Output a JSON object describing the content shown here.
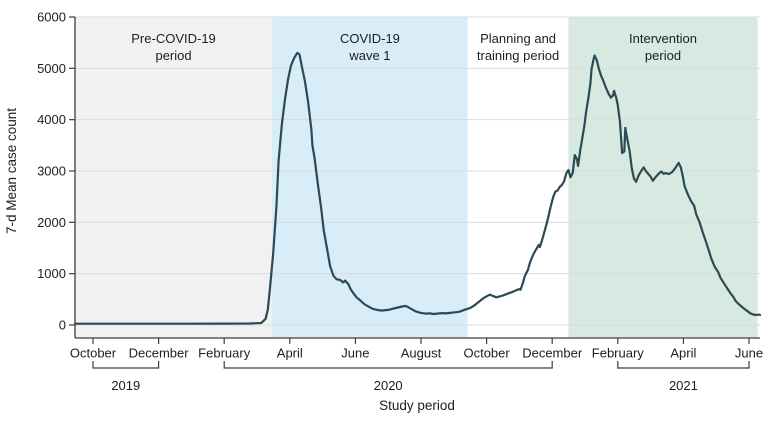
{
  "figure": {
    "y_axis_title": "7-d Mean case count",
    "x_axis_title": "Study period"
  },
  "chart_data": {
    "type": "line",
    "title": "",
    "xlabel": "Study period",
    "ylabel": "7-d Mean case count",
    "ylim": [
      0,
      6000
    ],
    "y_ticks": [
      0,
      1000,
      2000,
      3000,
      4000,
      5000,
      6000
    ],
    "grid": "horizontal",
    "legend": "none",
    "x_range": [
      "2019-09-14",
      "2021-06-09"
    ],
    "x_ticks": [
      {
        "date": "2019-10-01",
        "label": "October"
      },
      {
        "date": "2019-12-01",
        "label": "December"
      },
      {
        "date": "2020-02-01",
        "label": "February"
      },
      {
        "date": "2020-04-01",
        "label": "April"
      },
      {
        "date": "2020-06-01",
        "label": "June"
      },
      {
        "date": "2020-08-01",
        "label": "August"
      },
      {
        "date": "2020-10-01",
        "label": "October"
      },
      {
        "date": "2020-12-01",
        "label": "December"
      },
      {
        "date": "2021-02-01",
        "label": "February"
      },
      {
        "date": "2021-04-01",
        "label": "April"
      },
      {
        "date": "2021-06-01",
        "label": "June"
      }
    ],
    "year_brackets": [
      {
        "start": "2019-10-01",
        "end": "2019-12-01",
        "label": "2019"
      },
      {
        "start": "2020-02-01",
        "end": "2020-12-01",
        "label": "2020"
      },
      {
        "start": "2021-02-01",
        "end": "2021-06-01",
        "label": "2021"
      }
    ],
    "regions": [
      {
        "line1": "Pre-COVID-19",
        "line2": "period",
        "start": "2019-09-14",
        "end": "2020-03-15",
        "color": "#f0f1f0"
      },
      {
        "line1": "COVID-19",
        "line2": "wave 1",
        "start": "2020-03-15",
        "end": "2020-09-14",
        "color": "#d8edf8"
      },
      {
        "line1": "Planning and",
        "line2": "training period",
        "start": "2020-09-14",
        "end": "2020-12-16",
        "color": "#ffffff"
      },
      {
        "line1": "Intervention",
        "line2": "period",
        "start": "2020-12-16",
        "end": "2021-06-09",
        "color": "#d7e9e0"
      }
    ],
    "colors": {
      "line": "#2a4b55",
      "axis": "#3d3d3d",
      "grid": "#dadddb",
      "text": "#1e1e1e"
    },
    "series": [
      {
        "name": "7-d mean case count",
        "points": [
          [
            "2019-09-14",
            25
          ],
          [
            "2019-10-16",
            25
          ],
          [
            "2019-11-23",
            25
          ],
          [
            "2020-01-01",
            25
          ],
          [
            "2020-02-01",
            28
          ],
          [
            "2020-02-25",
            30
          ],
          [
            "2020-03-05",
            38
          ],
          [
            "2020-03-09",
            120
          ],
          [
            "2020-03-11",
            300
          ],
          [
            "2020-03-13",
            700
          ],
          [
            "2020-03-16",
            1400
          ],
          [
            "2020-03-19",
            2300
          ],
          [
            "2020-03-21",
            3200
          ],
          [
            "2020-03-24",
            3900
          ],
          [
            "2020-03-27",
            4400
          ],
          [
            "2020-03-30",
            4800
          ],
          [
            "2020-04-02",
            5050
          ],
          [
            "2020-04-05",
            5200
          ],
          [
            "2020-04-08",
            5300
          ],
          [
            "2020-04-10",
            5270
          ],
          [
            "2020-04-12",
            5050
          ],
          [
            "2020-04-15",
            4750
          ],
          [
            "2020-04-18",
            4350
          ],
          [
            "2020-04-21",
            3800
          ],
          [
            "2020-04-22",
            3500
          ],
          [
            "2020-04-24",
            3250
          ],
          [
            "2020-04-27",
            2750
          ],
          [
            "2020-04-30",
            2300
          ],
          [
            "2020-05-02",
            1850
          ],
          [
            "2020-05-05",
            1500
          ],
          [
            "2020-05-08",
            1150
          ],
          [
            "2020-05-11",
            960
          ],
          [
            "2020-05-14",
            890
          ],
          [
            "2020-05-17",
            880
          ],
          [
            "2020-05-20",
            830
          ],
          [
            "2020-05-22",
            865
          ],
          [
            "2020-05-25",
            790
          ],
          [
            "2020-05-27",
            700
          ],
          [
            "2020-05-30",
            610
          ],
          [
            "2020-06-02",
            540
          ],
          [
            "2020-06-06",
            470
          ],
          [
            "2020-06-10",
            395
          ],
          [
            "2020-06-14",
            350
          ],
          [
            "2020-06-17",
            315
          ],
          [
            "2020-06-22",
            290
          ],
          [
            "2020-06-26",
            283
          ],
          [
            "2020-07-01",
            295
          ],
          [
            "2020-07-05",
            315
          ],
          [
            "2020-07-10",
            340
          ],
          [
            "2020-07-14",
            360
          ],
          [
            "2020-07-17",
            372
          ],
          [
            "2020-07-19",
            355
          ],
          [
            "2020-07-23",
            305
          ],
          [
            "2020-07-27",
            262
          ],
          [
            "2020-07-31",
            238
          ],
          [
            "2020-08-05",
            222
          ],
          [
            "2020-08-09",
            226
          ],
          [
            "2020-08-13",
            214
          ],
          [
            "2020-08-17",
            224
          ],
          [
            "2020-08-20",
            232
          ],
          [
            "2020-08-24",
            226
          ],
          [
            "2020-08-28",
            235
          ],
          [
            "2020-09-02",
            247
          ],
          [
            "2020-09-06",
            257
          ],
          [
            "2020-09-09",
            280
          ],
          [
            "2020-09-13",
            310
          ],
          [
            "2020-09-16",
            330
          ],
          [
            "2020-09-20",
            380
          ],
          [
            "2020-09-23",
            430
          ],
          [
            "2020-09-26",
            480
          ],
          [
            "2020-09-29",
            530
          ],
          [
            "2020-10-01",
            560
          ],
          [
            "2020-10-04",
            590
          ],
          [
            "2020-10-07",
            565
          ],
          [
            "2020-10-10",
            540
          ],
          [
            "2020-10-13",
            555
          ],
          [
            "2020-10-17",
            580
          ],
          [
            "2020-10-21",
            615
          ],
          [
            "2020-10-25",
            645
          ],
          [
            "2020-10-28",
            672
          ],
          [
            "2020-10-31",
            700
          ],
          [
            "2020-11-02",
            688
          ],
          [
            "2020-11-04",
            800
          ],
          [
            "2020-11-06",
            950
          ],
          [
            "2020-11-09",
            1080
          ],
          [
            "2020-11-11",
            1230
          ],
          [
            "2020-11-14",
            1380
          ],
          [
            "2020-11-17",
            1490
          ],
          [
            "2020-11-19",
            1560
          ],
          [
            "2020-11-20",
            1520
          ],
          [
            "2020-11-22",
            1650
          ],
          [
            "2020-11-24",
            1800
          ],
          [
            "2020-11-26",
            1950
          ],
          [
            "2020-11-28",
            2120
          ],
          [
            "2020-11-30",
            2300
          ],
          [
            "2020-12-02",
            2500
          ],
          [
            "2020-12-04",
            2600
          ],
          [
            "2020-12-06",
            2620
          ],
          [
            "2020-12-08",
            2690
          ],
          [
            "2020-12-10",
            2730
          ],
          [
            "2020-12-12",
            2800
          ],
          [
            "2020-12-14",
            2950
          ],
          [
            "2020-12-16",
            3020
          ],
          [
            "2020-12-18",
            2880
          ],
          [
            "2020-12-20",
            2960
          ],
          [
            "2020-12-22",
            3310
          ],
          [
            "2020-12-24",
            3230
          ],
          [
            "2020-12-25",
            3100
          ],
          [
            "2020-12-27",
            3400
          ],
          [
            "2020-12-29",
            3650
          ],
          [
            "2020-12-31",
            3900
          ],
          [
            "2021-01-02",
            4150
          ],
          [
            "2021-01-04",
            4400
          ],
          [
            "2021-01-06",
            4700
          ],
          [
            "2021-01-07",
            4980
          ],
          [
            "2021-01-09",
            5180
          ],
          [
            "2021-01-10",
            5250
          ],
          [
            "2021-01-12",
            5150
          ],
          [
            "2021-01-14",
            4980
          ],
          [
            "2021-01-16",
            4850
          ],
          [
            "2021-01-18",
            4760
          ],
          [
            "2021-01-20",
            4640
          ],
          [
            "2021-01-23",
            4500
          ],
          [
            "2021-01-25",
            4430
          ],
          [
            "2021-01-27",
            4470
          ],
          [
            "2021-01-28",
            4560
          ],
          [
            "2021-01-30",
            4430
          ],
          [
            "2021-02-01",
            4280
          ],
          [
            "2021-02-03",
            3950
          ],
          [
            "2021-02-05",
            3350
          ],
          [
            "2021-02-07",
            3380
          ],
          [
            "2021-02-08",
            3840
          ],
          [
            "2021-02-10",
            3600
          ],
          [
            "2021-02-12",
            3380
          ],
          [
            "2021-02-14",
            3050
          ],
          [
            "2021-02-16",
            2850
          ],
          [
            "2021-02-18",
            2790
          ],
          [
            "2021-02-20",
            2900
          ],
          [
            "2021-02-23",
            3010
          ],
          [
            "2021-02-25",
            3070
          ],
          [
            "2021-02-27",
            3000
          ],
          [
            "2021-03-01",
            2890
          ],
          [
            "2021-03-03",
            2810
          ],
          [
            "2021-03-06",
            2890
          ],
          [
            "2021-03-09",
            2960
          ],
          [
            "2021-03-11",
            2990
          ],
          [
            "2021-03-13",
            2945
          ],
          [
            "2021-03-15",
            2960
          ],
          [
            "2021-03-18",
            2940
          ],
          [
            "2021-03-21",
            2980
          ],
          [
            "2021-03-24",
            3060
          ],
          [
            "2021-03-27",
            3160
          ],
          [
            "2021-03-29",
            3070
          ],
          [
            "2021-03-31",
            2890
          ],
          [
            "2021-04-02",
            2710
          ],
          [
            "2021-04-05",
            2550
          ],
          [
            "2021-04-08",
            2420
          ],
          [
            "2021-04-11",
            2320
          ],
          [
            "2021-04-13",
            2150
          ],
          [
            "2021-04-16",
            2000
          ],
          [
            "2021-04-19",
            1800
          ],
          [
            "2021-04-22",
            1620
          ],
          [
            "2021-04-25",
            1420
          ],
          [
            "2021-04-27",
            1290
          ],
          [
            "2021-04-30",
            1140
          ],
          [
            "2021-05-03",
            1020
          ],
          [
            "2021-05-05",
            920
          ],
          [
            "2021-05-08",
            820
          ],
          [
            "2021-05-11",
            720
          ],
          [
            "2021-05-14",
            625
          ],
          [
            "2021-05-17",
            545
          ],
          [
            "2021-05-19",
            470
          ],
          [
            "2021-05-22",
            405
          ],
          [
            "2021-05-25",
            350
          ],
          [
            "2021-05-28",
            300
          ],
          [
            "2021-05-31",
            258
          ],
          [
            "2021-06-02",
            228
          ],
          [
            "2021-06-05",
            205
          ],
          [
            "2021-06-08",
            192
          ],
          [
            "2021-06-10",
            205
          ],
          [
            "2021-06-12",
            195
          ]
        ]
      }
    ]
  }
}
